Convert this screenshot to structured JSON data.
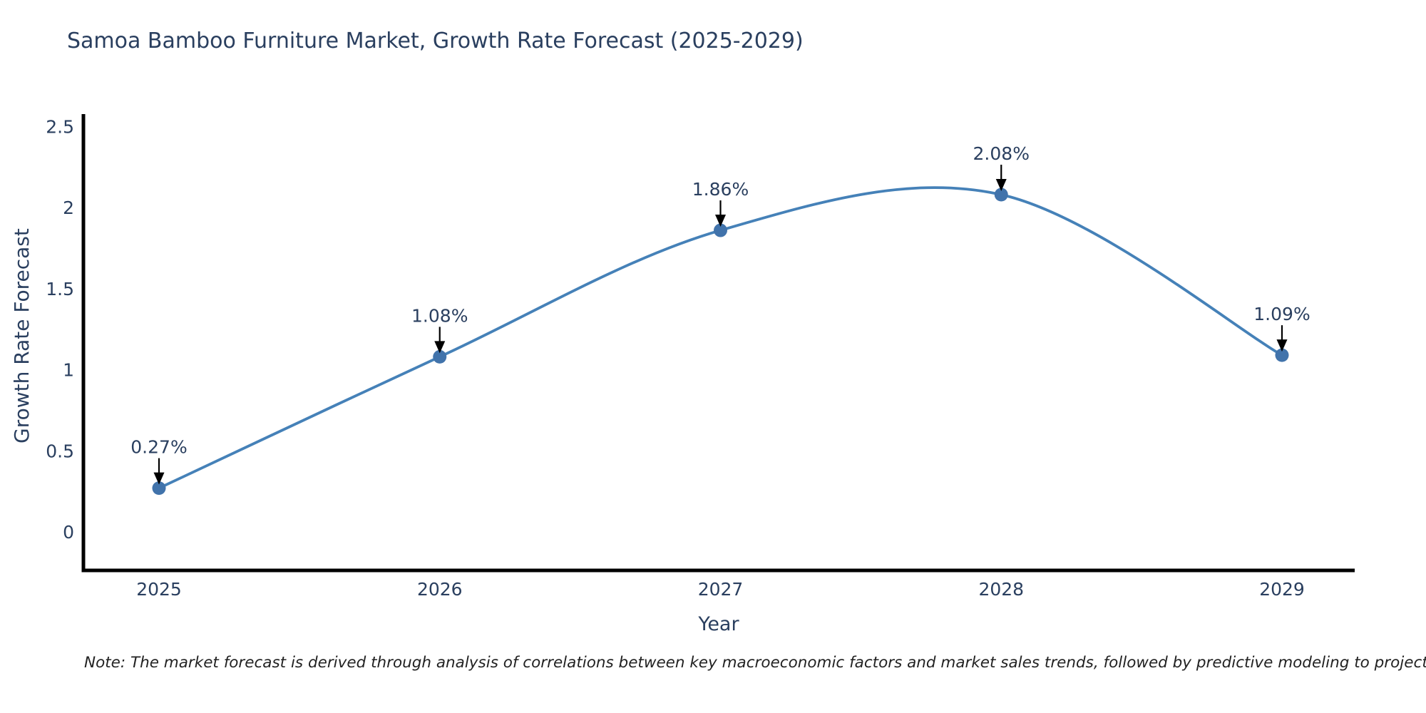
{
  "chart_data": {
    "type": "line",
    "title": "Samoa Bamboo Furniture Market, Growth Rate Forecast (2025-2029)",
    "xlabel": "Year",
    "ylabel": "Growth Rate Forecast",
    "categories": [
      "2025",
      "2026",
      "2027",
      "2028",
      "2029"
    ],
    "series": [
      {
        "name": "Growth Rate Forecast",
        "values": [
          0.27,
          1.08,
          1.86,
          2.08,
          1.09
        ],
        "point_labels": [
          "0.27%",
          "1.08%",
          "1.86%",
          "2.08%",
          "1.09%"
        ]
      }
    ],
    "ytick_values": [
      0,
      0.5,
      1,
      1.5,
      2,
      2.5
    ],
    "ytick_labels": [
      "0",
      "0.5",
      "1",
      "1.5",
      "2",
      "2.5"
    ],
    "ylim": [
      -0.23,
      2.58
    ],
    "line_shape": "spline",
    "markers": true,
    "grid": false,
    "legend_position": "none",
    "colors": {
      "line": "#4581b8",
      "marker": "#4173ab",
      "axis": "#000000",
      "text": "#2a3f5f",
      "annotation_arrow": "#000000"
    }
  },
  "note": "Note: The market forecast is derived through analysis of correlations between key macroeconomic factors and market sales trends, followed by predictive modeling to project future sales"
}
